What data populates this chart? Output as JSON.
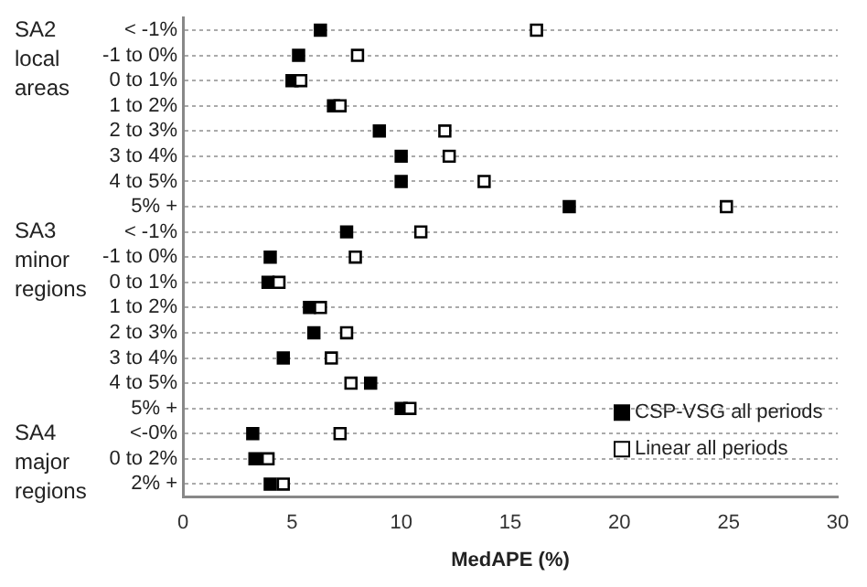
{
  "chart_data": {
    "type": "scatter",
    "orientation": "horizontal",
    "xlabel": "MedAPE (%)",
    "categories": [
      "< -1%",
      "-1 to 0%",
      "0 to 1%",
      "1 to 2%",
      "2 to 3%",
      "3 to 4%",
      "4 to 5%",
      "5% +",
      "< -1%",
      "-1 to 0%",
      "0 to 1%",
      "1 to 2%",
      "2 to 3%",
      "3 to 4%",
      "4 to 5%",
      "5% +",
      "<-0%",
      "0 to 2%",
      "2% +"
    ],
    "series": [
      {
        "name": "CSP-VSG all periods",
        "color": "#000000",
        "values": [
          6.3,
          5.3,
          5.0,
          6.9,
          9.0,
          10.0,
          10.0,
          17.7,
          7.5,
          4.0,
          3.9,
          5.8,
          6.0,
          4.6,
          8.6,
          10.0,
          3.2,
          3.3,
          4.0
        ]
      },
      {
        "name": "Linear all periods",
        "color": "#ffffff",
        "values": [
          16.2,
          8.0,
          5.4,
          7.2,
          12.0,
          12.2,
          13.8,
          24.9,
          10.9,
          7.9,
          4.4,
          6.3,
          7.5,
          6.8,
          7.7,
          10.4,
          7.2,
          3.9,
          4.6
        ]
      }
    ],
    "xlim": [
      0,
      30
    ],
    "xticks": [
      0,
      5,
      10,
      15,
      20,
      25,
      30
    ],
    "annotations": [
      "SA2 local areas",
      "SA3 minor regions",
      "SA4 major regions"
    ],
    "grid": "y",
    "legend": "bottom right",
    "marker": "square"
  }
}
